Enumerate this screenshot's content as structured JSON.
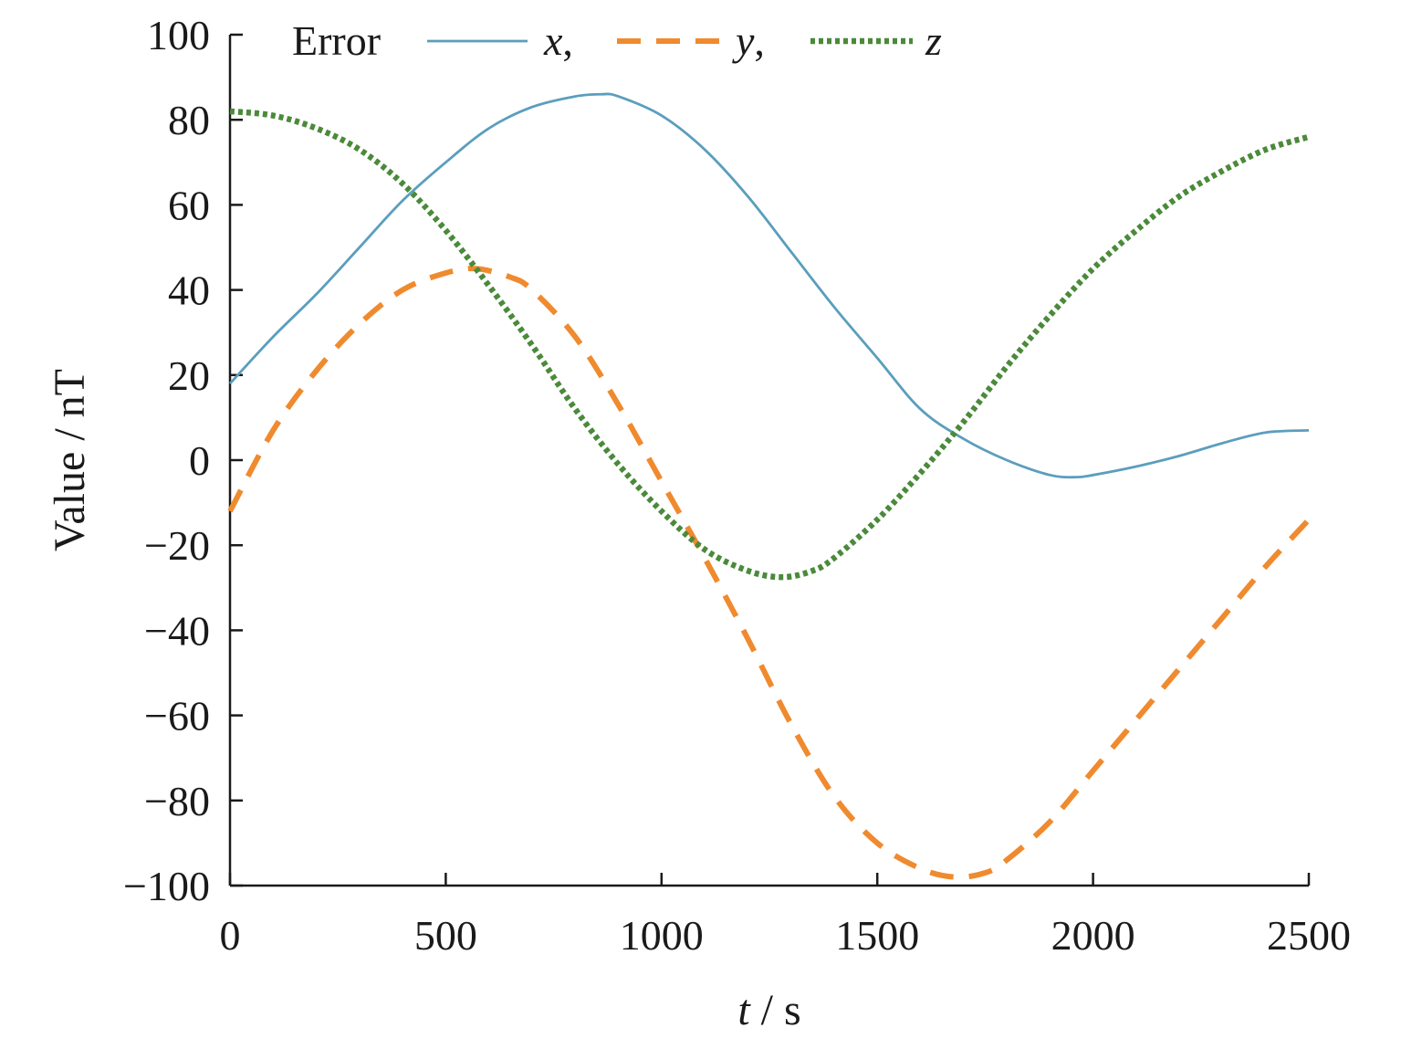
{
  "chart_data": {
    "type": "line",
    "title": "",
    "xlabel_var": "t",
    "xlabel_unit": " / s",
    "ylabel": "Value / nT",
    "xlim": [
      0,
      2500
    ],
    "ylim": [
      -100,
      100
    ],
    "xticks": [
      0,
      500,
      1000,
      1500,
      2000,
      2500
    ],
    "yticks": [
      100,
      80,
      60,
      40,
      20,
      0,
      -20,
      -40,
      -60,
      -80,
      -100
    ],
    "ytick_labels": [
      "100",
      "80",
      "60",
      "40",
      "20",
      "0",
      "−20",
      "−40",
      "−60",
      "−80",
      "−100"
    ],
    "grid": false,
    "legend": {
      "title": "Error",
      "placement": "top",
      "entries": [
        {
          "label": "x",
          "suffix": ","
        },
        {
          "label": "y",
          "suffix": ","
        },
        {
          "label": "z",
          "suffix": ""
        }
      ]
    },
    "series": [
      {
        "name": "x",
        "color": "#5b9ebd",
        "style": "solid",
        "x": [
          0,
          100,
          200,
          300,
          400,
          500,
          600,
          700,
          800,
          860,
          900,
          1000,
          1100,
          1200,
          1300,
          1400,
          1500,
          1600,
          1700,
          1800,
          1900,
          1960,
          2000,
          2100,
          2200,
          2300,
          2400,
          2500
        ],
        "y": [
          18,
          29,
          39,
          50,
          61,
          70,
          78,
          83,
          85.5,
          86,
          85.5,
          81,
          73,
          62,
          49,
          36,
          24,
          12,
          5,
          0,
          -3.5,
          -4,
          -3.5,
          -1.5,
          1,
          4,
          6.5,
          7
        ]
      },
      {
        "name": "y",
        "color": "#f08a2e",
        "style": "dashed",
        "x": [
          0,
          100,
          200,
          300,
          400,
          500,
          570,
          650,
          700,
          800,
          900,
          1000,
          1100,
          1200,
          1300,
          1400,
          1500,
          1600,
          1680,
          1750,
          1800,
          1900,
          2000,
          2100,
          2200,
          2300,
          2400,
          2500
        ],
        "y": [
          -12,
          7,
          21,
          32,
          40,
          44,
          45,
          43,
          40,
          29,
          13,
          -5,
          -23,
          -42,
          -62,
          -79,
          -90,
          -96,
          -98,
          -97,
          -94,
          -85,
          -73,
          -61,
          -49,
          -37,
          -25,
          -14
        ]
      },
      {
        "name": "z",
        "color": "#4a8a3a",
        "style": "dotted",
        "x": [
          0,
          100,
          200,
          300,
          400,
          500,
          600,
          700,
          800,
          900,
          1000,
          1100,
          1200,
          1280,
          1350,
          1400,
          1500,
          1600,
          1700,
          1800,
          1900,
          2000,
          2100,
          2200,
          2300,
          2400,
          2500
        ],
        "y": [
          82,
          81,
          78,
          73,
          65,
          54,
          41,
          27,
          12,
          -1,
          -12,
          -21,
          -26,
          -27.5,
          -26,
          -23,
          -14,
          -3,
          9,
          22,
          34,
          45,
          54,
          62,
          68,
          73,
          76
        ]
      }
    ]
  }
}
